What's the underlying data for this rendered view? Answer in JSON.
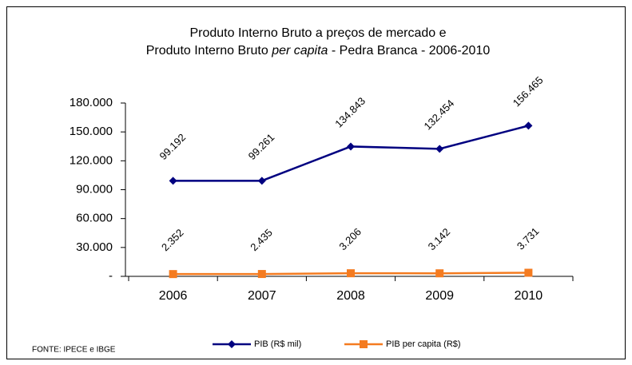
{
  "chart_data": {
    "type": "line",
    "title": {
      "line1": "Produto Interno Bruto a preços de mercado e",
      "line2": [
        "Produto Interno Bruto ",
        "per capita",
        " - Pedra Branca - 2006-2010"
      ]
    },
    "categories": [
      "2006",
      "2007",
      "2008",
      "2009",
      "2010"
    ],
    "series": [
      {
        "name": "PIB (R$ mil)",
        "color": "#000080",
        "marker": "diamond",
        "values": [
          99192,
          99261,
          134843,
          132454,
          156465
        ],
        "value_labels": [
          "99.192",
          "99.261",
          "134.843",
          "132.454",
          "156.465"
        ]
      },
      {
        "name": "PIB per capita (R$)",
        "color": "#f47b20",
        "marker": "square",
        "values": [
          2352,
          2435,
          3206,
          3142,
          3731
        ],
        "value_labels": [
          "2.352",
          "2.435",
          "3.206",
          "3.142",
          "3.731"
        ]
      }
    ],
    "ylim": [
      0,
      180000
    ],
    "yticks": [
      {
        "value": 0,
        "label": "-"
      },
      {
        "value": 30000,
        "label": "30.000"
      },
      {
        "value": 60000,
        "label": "60.000"
      },
      {
        "value": 90000,
        "label": "90.000"
      },
      {
        "value": 120000,
        "label": "120.000"
      },
      {
        "value": 150000,
        "label": "150.000"
      },
      {
        "value": 180000,
        "label": "180.000"
      }
    ],
    "source": "FONTE: IPECE e IBGE",
    "grid": false
  }
}
